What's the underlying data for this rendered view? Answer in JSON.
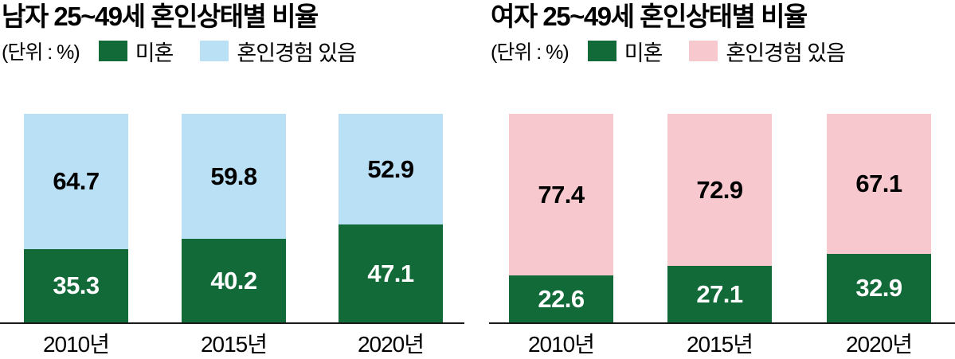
{
  "page": {
    "background": "#ffffff"
  },
  "colors": {
    "unmarried_green": "#126A38",
    "married_blue": "#B9E0F4",
    "married_pink": "#F8C8CF",
    "axis_line": "#1A1A1A",
    "value_on_dark": "#FFFFFF",
    "value_on_light": "#000000"
  },
  "chart_data": [
    {
      "type": "bar",
      "stacked": true,
      "title": "남자 25~49세 혼인상태별 비율",
      "unit": "(단위 : %)",
      "categories": [
        "2010년",
        "2015년",
        "2020년"
      ],
      "series": [
        {
          "name": "미혼",
          "values": [
            35.3,
            40.2,
            47.1
          ],
          "color": "#126A38",
          "label_color": "#FFFFFF"
        },
        {
          "name": "혼인경험 있음",
          "values": [
            64.7,
            59.8,
            52.9
          ],
          "color": "#B9E0F4",
          "label_color": "#000000"
        }
      ],
      "ylim": [
        0,
        100
      ],
      "grid": false,
      "legend_position": "top"
    },
    {
      "type": "bar",
      "stacked": true,
      "title": "여자 25~49세 혼인상태별 비율",
      "unit": "(단위 : %)",
      "categories": [
        "2010년",
        "2015년",
        "2020년"
      ],
      "series": [
        {
          "name": "미혼",
          "values": [
            22.6,
            27.1,
            32.9
          ],
          "color": "#126A38",
          "label_color": "#FFFFFF"
        },
        {
          "name": "혼인경험 있음",
          "values": [
            77.4,
            72.9,
            67.1
          ],
          "color": "#F8C8CF",
          "label_color": "#000000"
        }
      ],
      "ylim": [
        0,
        100
      ],
      "grid": false,
      "legend_position": "top"
    }
  ]
}
